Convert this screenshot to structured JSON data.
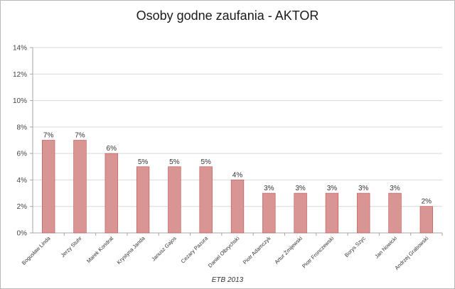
{
  "chart_data": {
    "type": "bar",
    "title": "Osoby godne zaufania - AKTOR",
    "source_note": "ETB 2013",
    "categories": [
      "Bogusław Linda",
      "Jerzy Stuhr",
      "Marek Kondrat",
      "Krystyna Janda",
      "Janusz Gajos",
      "Cezary Pazura",
      "Daniel Olbrychski",
      "Piotr Adamczyk",
      "Artur Żmijewski",
      "Piotr Fronczewski",
      "Borys Szyc",
      "Jan Nowicki",
      "Andrzej Grabowski"
    ],
    "values": [
      7,
      7,
      6,
      5,
      5,
      5,
      4,
      3,
      3,
      3,
      3,
      3,
      2
    ],
    "value_labels": [
      "7%",
      "7%",
      "6%",
      "5%",
      "5%",
      "5%",
      "4%",
      "3%",
      "3%",
      "3%",
      "3%",
      "3%",
      "2%"
    ],
    "yticks": [
      "0%",
      "2%",
      "4%",
      "6%",
      "8%",
      "10%",
      "12%",
      "14%"
    ],
    "ylim": [
      0,
      14
    ],
    "grid": true,
    "legend": "none",
    "bar_color": "#d99594",
    "bar_edge_color": "#c0504d"
  }
}
